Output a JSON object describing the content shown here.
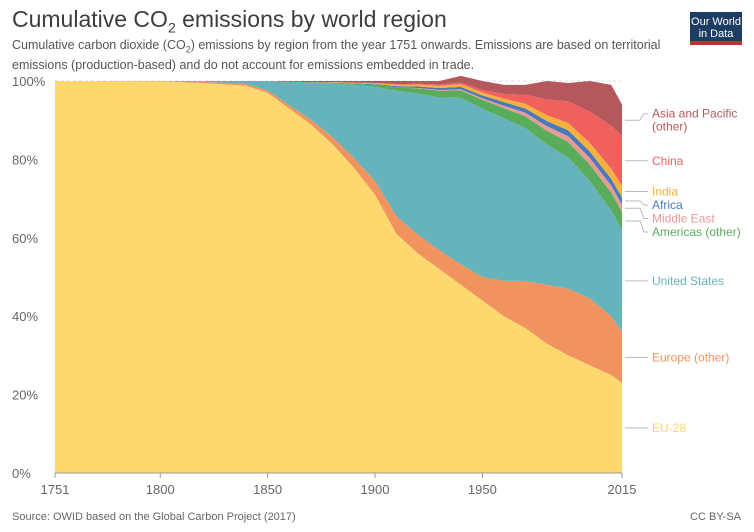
{
  "header": {
    "title_pre": "Cumulative CO",
    "title_sub": "2",
    "title_post": " emissions by world region",
    "subtitle_pre": "Cumulative carbon dioxide (CO",
    "subtitle_sub": "2",
    "subtitle_post": ") emissions by region from the year 1751 onwards. Emissions are based on territorial emissions (production-based) and do not account for emissions embedded in trade.",
    "logo_line1": "Our World",
    "logo_line2": "in Data"
  },
  "footer": {
    "source": "Source: OWID based on the Global Carbon Project (2017)",
    "license": "CC BY-SA"
  },
  "chart_data": {
    "type": "area",
    "stacked": true,
    "normalized": true,
    "x": [
      1751,
      1800,
      1820,
      1840,
      1850,
      1860,
      1870,
      1880,
      1890,
      1900,
      1910,
      1920,
      1930,
      1940,
      1950,
      1960,
      1970,
      1980,
      1990,
      2000,
      2010,
      2015
    ],
    "xlim": [
      1751,
      2015
    ],
    "ylim": [
      0,
      100
    ],
    "x_ticks": [
      "1751",
      "1800",
      "1850",
      "1900",
      "1950",
      "2015"
    ],
    "y_ticks": [
      "0%",
      "20%",
      "40%",
      "60%",
      "80%",
      "100%"
    ],
    "grid": "horizontal dashed",
    "legend_placement": "right, at series end",
    "series": [
      {
        "name": "EU-28",
        "color": "#fdd86f",
        "values": [
          100,
          99.9,
          99.5,
          98.8,
          97,
          93,
          89,
          84,
          78,
          71,
          61,
          56,
          52,
          48,
          44,
          40,
          37,
          33,
          30,
          27.5,
          25,
          23
        ]
      },
      {
        "name": "Europe (other)",
        "color": "#f0935f",
        "values": [
          0,
          0.1,
          0.3,
          0.4,
          0.6,
          0.8,
          1.2,
          1.8,
          2.5,
          3.5,
          4.5,
          4.8,
          4.8,
          5.2,
          6,
          9,
          12,
          15,
          17,
          17,
          15,
          13
        ]
      },
      {
        "name": "United States",
        "color": "#66b3bc",
        "values": [
          0,
          0,
          0.2,
          0.8,
          2.4,
          6,
          9.4,
          13.6,
          18.5,
          24,
          32,
          36,
          39,
          42.5,
          43,
          41.5,
          39,
          35.8,
          33.5,
          30,
          27,
          26
        ]
      },
      {
        "name": "Americas (other)",
        "color": "#59ac5a",
        "values": [
          0,
          0,
          0,
          0,
          0,
          0,
          0.1,
          0.2,
          0.3,
          0.5,
          0.9,
          1.3,
          1.7,
          1.9,
          2.2,
          2.6,
          3,
          3.5,
          3.9,
          4.2,
          4.5,
          4.6
        ]
      },
      {
        "name": "Middle East",
        "color": "#e79b97",
        "values": [
          0,
          0,
          0,
          0,
          0,
          0,
          0,
          0,
          0,
          0,
          0,
          0.1,
          0.2,
          0.3,
          0.4,
          0.6,
          0.9,
          1.2,
          1.5,
          1.7,
          1.8,
          1.9
        ]
      },
      {
        "name": "Africa",
        "color": "#4a79b9",
        "values": [
          0,
          0,
          0,
          0,
          0,
          0,
          0,
          0,
          0.1,
          0.2,
          0.3,
          0.4,
          0.5,
          0.6,
          0.7,
          0.9,
          1.1,
          1.3,
          1.5,
          1.6,
          1.7,
          1.8
        ]
      },
      {
        "name": "India",
        "color": "#f6b03d",
        "values": [
          0,
          0,
          0,
          0,
          0,
          0,
          0,
          0.1,
          0.2,
          0.3,
          0.4,
          0.5,
          0.6,
          0.7,
          0.8,
          0.9,
          1.2,
          1.5,
          1.9,
          2.2,
          2.6,
          3
        ]
      },
      {
        "name": "China",
        "color": "#f0605d",
        "values": [
          0,
          0,
          0,
          0,
          0,
          0,
          0,
          0,
          0,
          0,
          0.1,
          0.2,
          0.3,
          0.4,
          0.6,
          1.2,
          2.3,
          4,
          5.5,
          8,
          11,
          12.7
        ]
      },
      {
        "name": "Asia and Pacific (other)",
        "color": "#b4585d",
        "values": [
          0,
          0,
          0,
          0,
          0,
          0.2,
          0.3,
          0.3,
          0.4,
          0.5,
          0.8,
          0.7,
          0.9,
          1.7,
          2.3,
          2.3,
          2.5,
          4.7,
          4.7,
          7.8,
          10.4,
          8
        ]
      }
    ]
  }
}
